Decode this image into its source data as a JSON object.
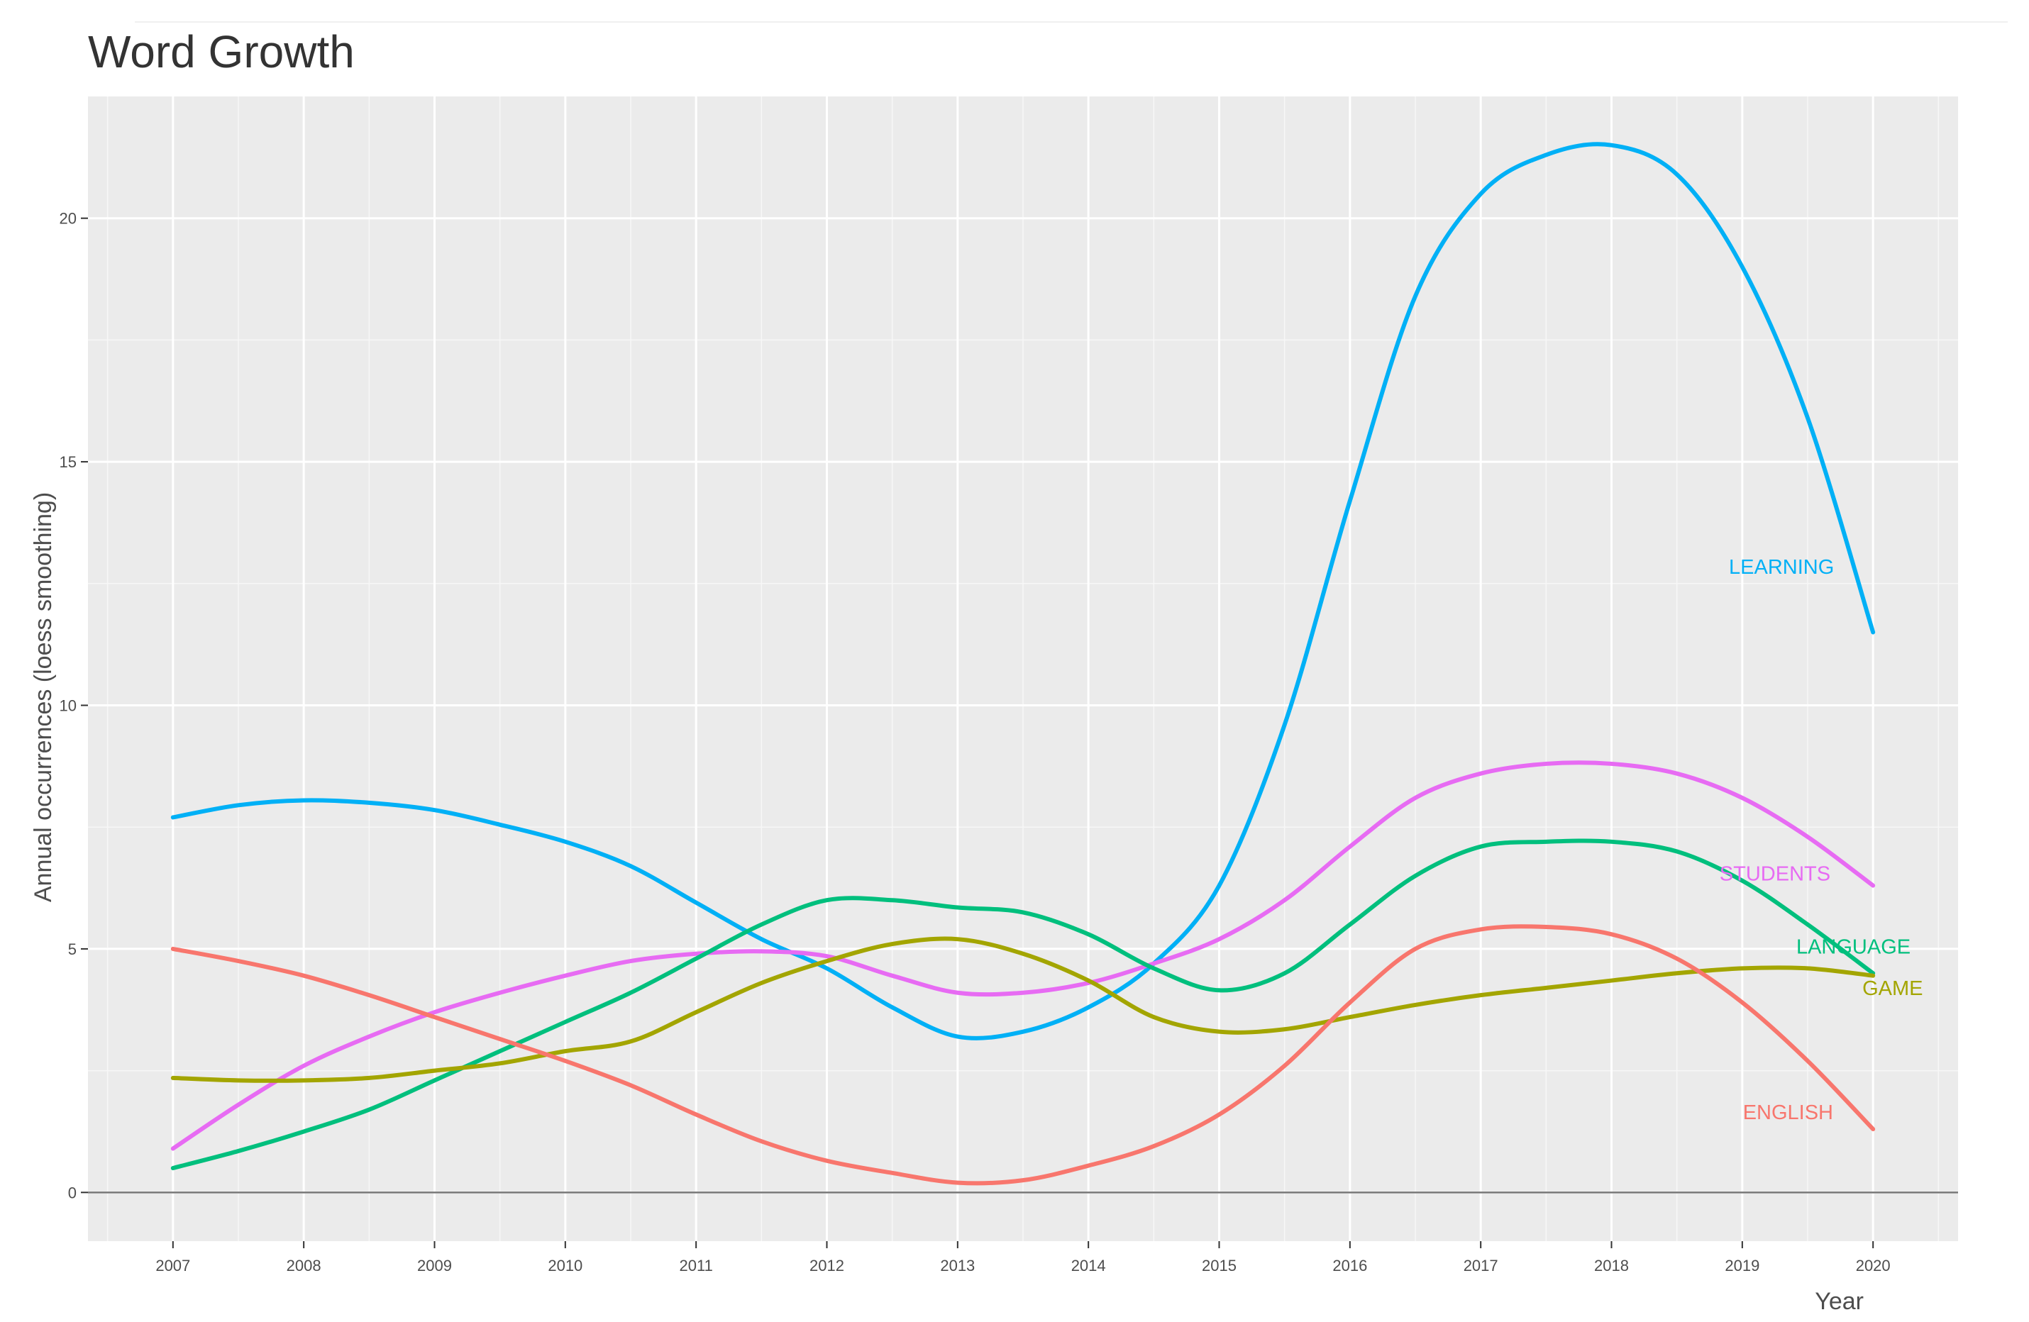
{
  "chart_data": {
    "type": "line",
    "title": "Word Growth",
    "xlabel": "Year",
    "ylabel": "Annual occurrences (loess smoothing)",
    "xlim": [
      2006.35,
      2020.65
    ],
    "ylim": [
      -1.0,
      22.5
    ],
    "x_ticks": [
      "2007",
      "2008",
      "2009",
      "2010",
      "2011",
      "2012",
      "2013",
      "2014",
      "2015",
      "2016",
      "2017",
      "2018",
      "2019",
      "2020"
    ],
    "y_ticks": [
      0,
      5,
      10,
      15,
      20
    ],
    "grid": true,
    "legend": "none (direct labels at line ends)",
    "hline": 0,
    "series": [
      {
        "name": "LEARNING",
        "color": "#00b0f6",
        "x": [
          2007,
          2007.5,
          2008,
          2008.5,
          2009,
          2009.5,
          2010,
          2010.5,
          2011,
          2011.5,
          2012,
          2012.5,
          2013,
          2013.5,
          2014,
          2014.5,
          2015,
          2015.5,
          2016,
          2016.5,
          2017,
          2017.5,
          2018,
          2018.5,
          2019,
          2019.5,
          2020
        ],
        "y": [
          7.7,
          7.95,
          8.05,
          8.0,
          7.85,
          7.55,
          7.2,
          6.7,
          5.95,
          5.2,
          4.6,
          3.8,
          3.2,
          3.3,
          3.8,
          4.7,
          6.3,
          9.6,
          14.2,
          18.4,
          20.5,
          21.3,
          21.5,
          20.9,
          19.0,
          15.9,
          11.5
        ]
      },
      {
        "name": "STUDENTS",
        "color": "#e76bf3",
        "x": [
          2007,
          2007.5,
          2008,
          2008.5,
          2009,
          2009.5,
          2010,
          2010.5,
          2011,
          2011.5,
          2012,
          2012.5,
          2013,
          2013.5,
          2014,
          2014.5,
          2015,
          2015.5,
          2016,
          2016.5,
          2017,
          2017.5,
          2018,
          2018.5,
          2019,
          2019.5,
          2020
        ],
        "y": [
          0.9,
          1.8,
          2.6,
          3.2,
          3.7,
          4.1,
          4.45,
          4.75,
          4.9,
          4.95,
          4.85,
          4.45,
          4.1,
          4.1,
          4.3,
          4.7,
          5.2,
          6.0,
          7.1,
          8.1,
          8.6,
          8.8,
          8.8,
          8.6,
          8.1,
          7.3,
          6.3
        ]
      },
      {
        "name": "LANGUAGE",
        "color": "#00bf7d",
        "x": [
          2007,
          2007.5,
          2008,
          2008.5,
          2009,
          2009.5,
          2010,
          2010.5,
          2011,
          2011.5,
          2012,
          2012.5,
          2013,
          2013.5,
          2014,
          2014.5,
          2015,
          2015.5,
          2016,
          2016.5,
          2017,
          2017.5,
          2018,
          2018.5,
          2019,
          2019.5,
          2020
        ],
        "y": [
          0.5,
          0.85,
          1.25,
          1.7,
          2.3,
          2.9,
          3.5,
          4.1,
          4.8,
          5.5,
          6.0,
          6.0,
          5.85,
          5.75,
          5.3,
          4.6,
          4.15,
          4.5,
          5.5,
          6.5,
          7.1,
          7.2,
          7.2,
          7.0,
          6.4,
          5.5,
          4.5
        ]
      },
      {
        "name": "GAME",
        "color": "#a3a500",
        "x": [
          2007,
          2007.5,
          2008,
          2008.5,
          2009,
          2009.5,
          2010,
          2010.5,
          2011,
          2011.5,
          2012,
          2012.5,
          2013,
          2013.5,
          2014,
          2014.5,
          2015,
          2015.5,
          2016,
          2016.5,
          2017,
          2017.5,
          2018,
          2018.5,
          2019,
          2019.5,
          2020
        ],
        "y": [
          2.35,
          2.3,
          2.3,
          2.35,
          2.5,
          2.65,
          2.9,
          3.1,
          3.7,
          4.3,
          4.75,
          5.1,
          5.2,
          4.9,
          4.35,
          3.6,
          3.3,
          3.35,
          3.6,
          3.85,
          4.05,
          4.2,
          4.35,
          4.5,
          4.6,
          4.6,
          4.45
        ]
      },
      {
        "name": "ENGLISH",
        "color": "#f8766d",
        "x": [
          2007,
          2007.5,
          2008,
          2008.5,
          2009,
          2009.5,
          2010,
          2010.5,
          2011,
          2011.5,
          2012,
          2012.5,
          2013,
          2013.5,
          2014,
          2014.5,
          2015,
          2015.5,
          2016,
          2016.5,
          2017,
          2017.5,
          2018,
          2018.5,
          2019,
          2019.5,
          2020
        ],
        "y": [
          5.0,
          4.75,
          4.45,
          4.05,
          3.6,
          3.15,
          2.7,
          2.2,
          1.6,
          1.05,
          0.65,
          0.4,
          0.2,
          0.25,
          0.55,
          0.95,
          1.6,
          2.6,
          3.9,
          5.0,
          5.4,
          5.45,
          5.3,
          4.8,
          3.9,
          2.7,
          1.3
        ]
      }
    ],
    "annotations": [
      {
        "text": "LEARNING",
        "series": "LEARNING",
        "x": 2019.3,
        "y": 12.85,
        "anchor": "middle"
      },
      {
        "text": "STUDENTS",
        "series": "STUDENTS",
        "x": 2019.25,
        "y": 6.55,
        "anchor": "middle"
      },
      {
        "text": "LANGUAGE",
        "series": "LANGUAGE",
        "x": 2019.85,
        "y": 5.05,
        "anchor": "middle"
      },
      {
        "text": "GAME",
        "series": "GAME",
        "x": 2020.15,
        "y": 4.2,
        "anchor": "middle"
      },
      {
        "text": "ENGLISH",
        "series": "ENGLISH",
        "x": 2019.35,
        "y": 1.65,
        "anchor": "middle"
      }
    ]
  }
}
